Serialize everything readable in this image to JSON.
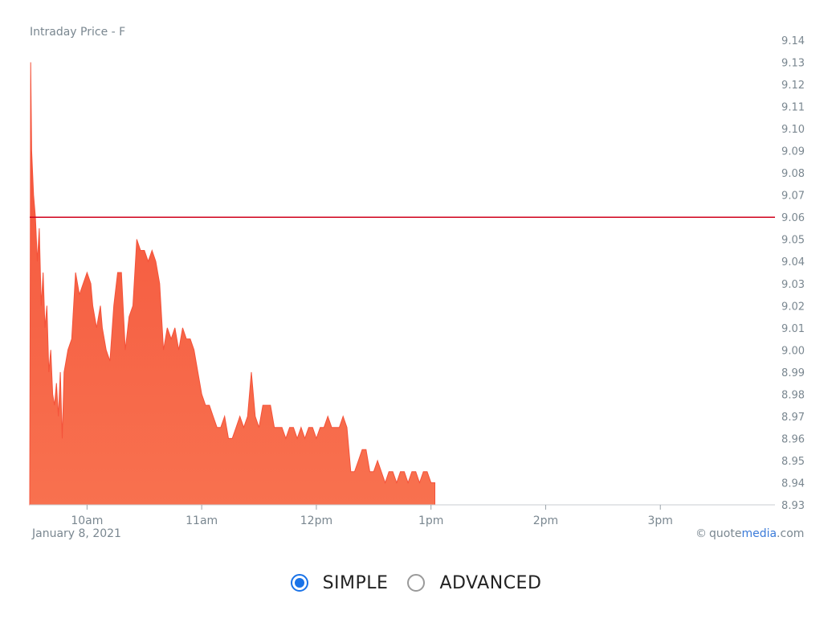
{
  "chart": {
    "title": "Intraday Price - F",
    "date_label": "January 8, 2021",
    "credit_prefix": "quote",
    "credit_brand": "media",
    "credit_suffix": ".com",
    "credit_symbol": "©"
  },
  "chart_data": {
    "type": "area",
    "title": "Intraday Price - F",
    "xlabel": "",
    "ylabel": "",
    "ylim": [
      8.93,
      9.14
    ],
    "y_ticks": [
      "8.93",
      "8.94",
      "8.95",
      "8.96",
      "8.97",
      "8.98",
      "8.99",
      "9.00",
      "9.01",
      "9.02",
      "9.03",
      "9.04",
      "9.05",
      "9.06",
      "9.07",
      "9.08",
      "9.09",
      "9.10",
      "9.11",
      "9.12",
      "9.13",
      "9.14"
    ],
    "x_ticks": [
      {
        "label": "10am",
        "minute": 600
      },
      {
        "label": "11am",
        "minute": 660
      },
      {
        "label": "12pm",
        "minute": 720
      },
      {
        "label": "1pm",
        "minute": 780
      },
      {
        "label": "2pm",
        "minute": 840
      },
      {
        "label": "3pm",
        "minute": 900
      }
    ],
    "xlim_minutes": [
      570,
      960
    ],
    "reference_line": {
      "value": 9.06,
      "color": "#d0021b"
    },
    "fill_color": "#f4523a",
    "fill_color_bottom": "#f8714f",
    "series": [
      {
        "minutes": [
          570,
          570.5,
          571,
          571.5,
          572,
          573,
          574,
          575,
          576,
          577,
          578,
          579,
          580,
          581,
          582,
          583,
          584,
          585,
          586,
          587,
          588,
          589,
          590,
          592,
          594,
          596,
          598,
          600,
          602,
          603,
          605,
          607,
          608,
          610,
          612,
          614,
          616,
          618,
          620,
          622,
          624,
          626,
          628,
          630,
          632,
          634,
          636,
          638,
          640,
          642,
          644,
          646,
          648,
          650,
          652,
          654,
          656,
          658,
          660,
          662,
          664,
          666,
          668,
          670,
          672,
          674,
          676,
          678,
          680,
          682,
          684,
          686,
          688,
          690,
          692,
          694,
          696,
          698,
          700,
          702,
          704,
          706,
          708,
          710,
          712,
          714,
          716,
          718,
          720,
          722,
          724,
          726,
          728,
          730,
          732,
          734,
          736,
          738,
          740,
          742,
          744,
          746,
          748,
          750,
          752,
          754,
          756,
          758,
          760,
          762,
          764,
          766,
          768,
          770,
          772,
          774,
          776,
          778,
          780,
          782
        ],
        "values": [
          8.93,
          9.13,
          9.09,
          9.08,
          9.07,
          9.06,
          9.04,
          9.055,
          9.02,
          9.035,
          9.01,
          9.02,
          8.99,
          9.0,
          8.98,
          8.975,
          8.985,
          8.97,
          8.99,
          8.96,
          8.99,
          8.995,
          9.0,
          9.005,
          9.035,
          9.025,
          9.03,
          9.035,
          9.03,
          9.02,
          9.01,
          9.02,
          9.01,
          9.0,
          8.995,
          9.02,
          9.035,
          9.035,
          9.0,
          9.015,
          9.02,
          9.05,
          9.045,
          9.045,
          9.04,
          9.045,
          9.04,
          9.03,
          9.0,
          9.01,
          9.005,
          9.01,
          9.0,
          9.01,
          9.005,
          9.005,
          9.0,
          8.99,
          8.98,
          8.975,
          8.975,
          8.97,
          8.965,
          8.965,
          8.97,
          8.96,
          8.96,
          8.965,
          8.97,
          8.965,
          8.97,
          8.99,
          8.97,
          8.965,
          8.975,
          8.975,
          8.975,
          8.965,
          8.965,
          8.965,
          8.96,
          8.965,
          8.965,
          8.96,
          8.965,
          8.96,
          8.965,
          8.965,
          8.96,
          8.965,
          8.965,
          8.97,
          8.965,
          8.965,
          8.965,
          8.97,
          8.965,
          8.945,
          8.945,
          8.95,
          8.955,
          8.955,
          8.945,
          8.945,
          8.95,
          8.945,
          8.94,
          8.945,
          8.945,
          8.94,
          8.945,
          8.945,
          8.94,
          8.945,
          8.945,
          8.94,
          8.945,
          8.945,
          8.94,
          8.94
        ]
      }
    ]
  },
  "mode_selector": {
    "options": [
      {
        "label": "SIMPLE",
        "checked": true
      },
      {
        "label": "ADVANCED",
        "checked": false
      }
    ]
  }
}
